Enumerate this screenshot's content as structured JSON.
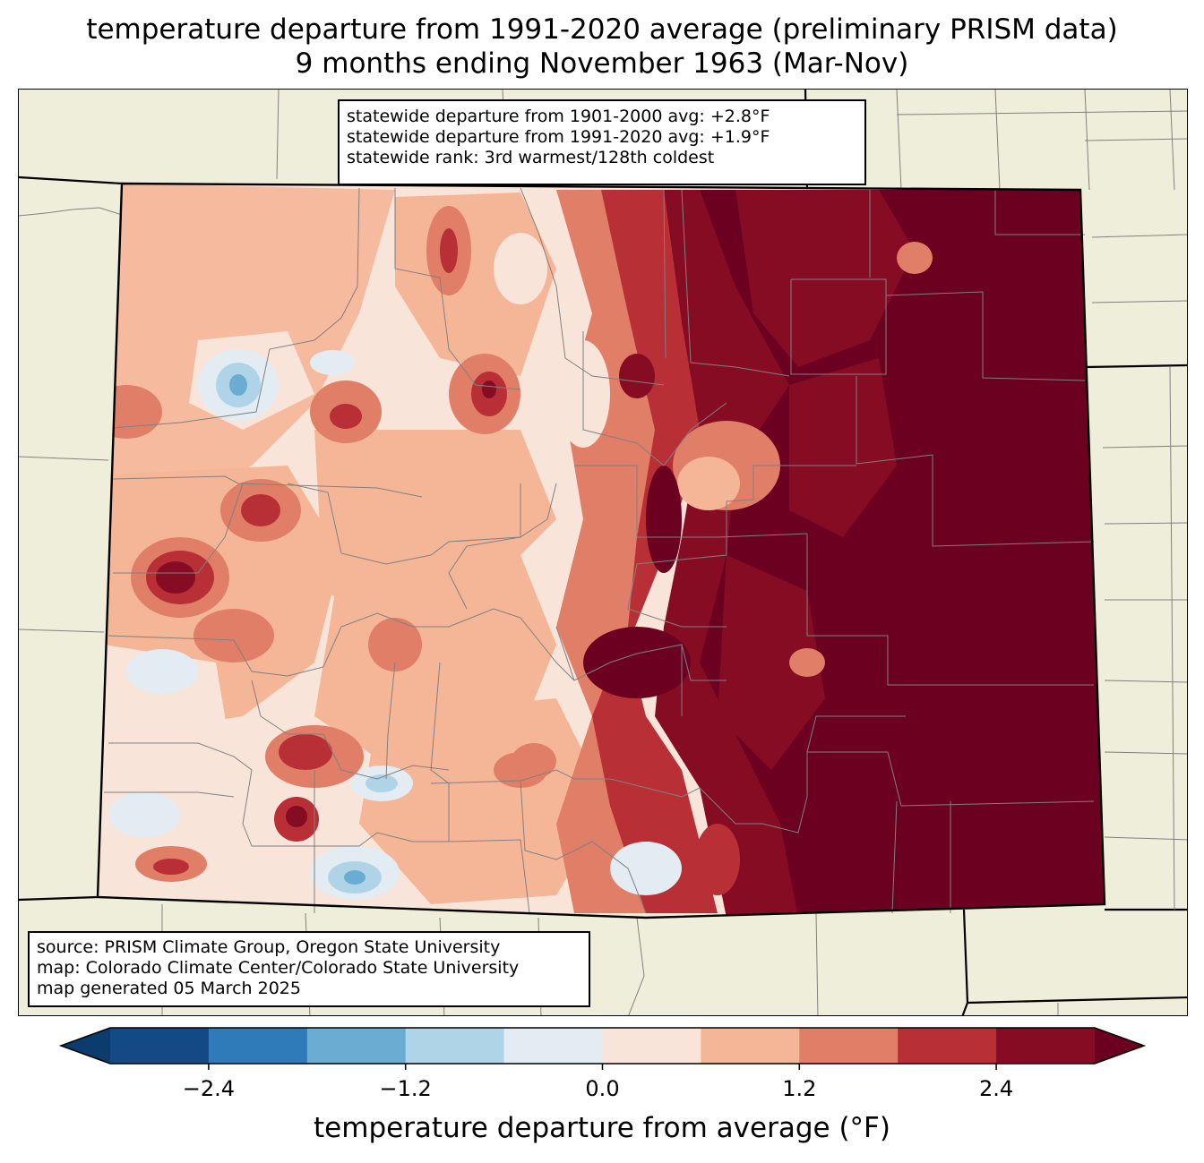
{
  "title": {
    "line1": "temperature departure from 1991-2020 average (preliminary PRISM data)",
    "line2": "9 months ending November 1963 (Mar-Nov)"
  },
  "stats": {
    "line1": "statewide departure from 1901-2000 avg: +2.8°F",
    "line2": "statewide departure from 1991-2020 avg: +1.9°F",
    "line3": "statewide rank: 3rd warmest/128th coldest"
  },
  "source": {
    "line1": "source: PRISM Climate Group, Oregon State University",
    "line2": "map: Colorado Climate Center/Colorado State University",
    "line3": "map generated 05 March 2025"
  },
  "colorbar": {
    "label": "temperature departure from average (°F)",
    "ticks": [
      "−2.4",
      "−1.2",
      "0.0",
      "1.2",
      "2.4"
    ],
    "tick_values": [
      -2.4,
      -1.2,
      0.0,
      1.2,
      2.4
    ],
    "range": [
      -3.0,
      3.0
    ],
    "bin_width": 0.6,
    "colors": [
      "#0c3c6e",
      "#134a86",
      "#2f7ab8",
      "#6badd2",
      "#b0d4e7",
      "#e3ecf3",
      "#f9e4da",
      "#f5b698",
      "#e07e67",
      "#b82f36",
      "#860c24",
      "#6b0020"
    ]
  },
  "map": {
    "background": "#efeedb",
    "state_border": "#000000",
    "county_lines": "#808080"
  }
}
